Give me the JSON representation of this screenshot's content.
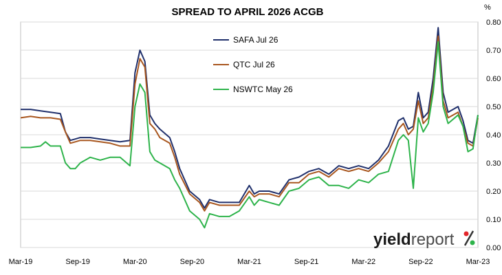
{
  "chart_data": {
    "type": "line",
    "title": "SPREAD TO APRIL 2026 ACGB",
    "y_unit": "%",
    "ylim": [
      0.0,
      0.8
    ],
    "yticks": [
      "0.00",
      "0.10",
      "0.20",
      "0.30",
      "0.40",
      "0.50",
      "0.60",
      "0.70",
      "0.80"
    ],
    "y_axis_side": "right",
    "x_tick_labels": [
      "Mar-19",
      "Sep-19",
      "Mar-20",
      "Sep-20",
      "Mar-21",
      "Sep-21",
      "Mar-22",
      "Sep-22",
      "Mar-23"
    ],
    "grid": true,
    "legend_position": "upper-center",
    "series": [
      {
        "name": "SAFA Jul 26",
        "color": "#1f2f6b",
        "points": [
          [
            0,
            0.49
          ],
          [
            1,
            0.49
          ],
          [
            2,
            0.485
          ],
          [
            3,
            0.48
          ],
          [
            4,
            0.475
          ],
          [
            4.5,
            0.41
          ],
          [
            5,
            0.38
          ],
          [
            5.5,
            0.385
          ],
          [
            6,
            0.39
          ],
          [
            7,
            0.39
          ],
          [
            8,
            0.385
          ],
          [
            9,
            0.38
          ],
          [
            10,
            0.375
          ],
          [
            11,
            0.38
          ],
          [
            11.5,
            0.62
          ],
          [
            12,
            0.7
          ],
          [
            12.5,
            0.66
          ],
          [
            13,
            0.47
          ],
          [
            13.5,
            0.44
          ],
          [
            14,
            0.42
          ],
          [
            15,
            0.39
          ],
          [
            15.5,
            0.34
          ],
          [
            16,
            0.28
          ],
          [
            17,
            0.2
          ],
          [
            18,
            0.17
          ],
          [
            18.5,
            0.14
          ],
          [
            19,
            0.17
          ],
          [
            20,
            0.16
          ],
          [
            21,
            0.16
          ],
          [
            22,
            0.16
          ],
          [
            23,
            0.22
          ],
          [
            23.5,
            0.19
          ],
          [
            24,
            0.2
          ],
          [
            25,
            0.2
          ],
          [
            26,
            0.19
          ],
          [
            27,
            0.24
          ],
          [
            28,
            0.25
          ],
          [
            29,
            0.27
          ],
          [
            30,
            0.28
          ],
          [
            31,
            0.26
          ],
          [
            32,
            0.29
          ],
          [
            33,
            0.28
          ],
          [
            34,
            0.29
          ],
          [
            35,
            0.28
          ],
          [
            36,
            0.31
          ],
          [
            37,
            0.36
          ],
          [
            38,
            0.45
          ],
          [
            38.5,
            0.46
          ],
          [
            39,
            0.42
          ],
          [
            39.5,
            0.43
          ],
          [
            40,
            0.55
          ],
          [
            40.5,
            0.46
          ],
          [
            41,
            0.48
          ],
          [
            41.5,
            0.6
          ],
          [
            42,
            0.78
          ],
          [
            42.5,
            0.55
          ],
          [
            43,
            0.48
          ],
          [
            44,
            0.5
          ],
          [
            44.5,
            0.45
          ],
          [
            45,
            0.38
          ],
          [
            45.5,
            0.37
          ],
          [
            46,
            0.47
          ]
        ]
      },
      {
        "name": "QTC Jul 26",
        "color": "#a8561e",
        "points": [
          [
            0,
            0.46
          ],
          [
            1,
            0.465
          ],
          [
            2,
            0.46
          ],
          [
            3,
            0.46
          ],
          [
            4,
            0.455
          ],
          [
            4.5,
            0.41
          ],
          [
            5,
            0.37
          ],
          [
            5.5,
            0.375
          ],
          [
            6,
            0.38
          ],
          [
            7,
            0.38
          ],
          [
            8,
            0.375
          ],
          [
            9,
            0.37
          ],
          [
            10,
            0.36
          ],
          [
            11,
            0.36
          ],
          [
            11.5,
            0.58
          ],
          [
            12,
            0.67
          ],
          [
            12.5,
            0.64
          ],
          [
            13,
            0.44
          ],
          [
            13.5,
            0.42
          ],
          [
            14,
            0.39
          ],
          [
            15,
            0.37
          ],
          [
            15.5,
            0.32
          ],
          [
            16,
            0.26
          ],
          [
            17,
            0.19
          ],
          [
            18,
            0.16
          ],
          [
            18.5,
            0.13
          ],
          [
            19,
            0.16
          ],
          [
            20,
            0.15
          ],
          [
            21,
            0.15
          ],
          [
            22,
            0.15
          ],
          [
            23,
            0.2
          ],
          [
            23.5,
            0.18
          ],
          [
            24,
            0.19
          ],
          [
            25,
            0.19
          ],
          [
            26,
            0.18
          ],
          [
            27,
            0.23
          ],
          [
            28,
            0.23
          ],
          [
            29,
            0.26
          ],
          [
            30,
            0.27
          ],
          [
            31,
            0.25
          ],
          [
            32,
            0.28
          ],
          [
            33,
            0.27
          ],
          [
            34,
            0.28
          ],
          [
            35,
            0.27
          ],
          [
            36,
            0.3
          ],
          [
            37,
            0.34
          ],
          [
            38,
            0.42
          ],
          [
            38.5,
            0.44
          ],
          [
            39,
            0.4
          ],
          [
            39.5,
            0.42
          ],
          [
            40,
            0.52
          ],
          [
            40.5,
            0.44
          ],
          [
            41,
            0.46
          ],
          [
            41.5,
            0.57
          ],
          [
            42,
            0.75
          ],
          [
            42.5,
            0.52
          ],
          [
            43,
            0.46
          ],
          [
            44,
            0.48
          ],
          [
            44.5,
            0.43
          ],
          [
            45,
            0.37
          ],
          [
            45.5,
            0.36
          ],
          [
            46,
            0.46
          ]
        ]
      },
      {
        "name": "NSWTC May 26",
        "color": "#2db34a",
        "points": [
          [
            0,
            0.355
          ],
          [
            1,
            0.355
          ],
          [
            2,
            0.36
          ],
          [
            2.5,
            0.375
          ],
          [
            3,
            0.36
          ],
          [
            4,
            0.36
          ],
          [
            4.5,
            0.3
          ],
          [
            5,
            0.28
          ],
          [
            5.5,
            0.28
          ],
          [
            6,
            0.3
          ],
          [
            7,
            0.32
          ],
          [
            8,
            0.31
          ],
          [
            9,
            0.32
          ],
          [
            10,
            0.32
          ],
          [
            11,
            0.29
          ],
          [
            11.5,
            0.5
          ],
          [
            12,
            0.58
          ],
          [
            12.5,
            0.55
          ],
          [
            13,
            0.34
          ],
          [
            13.5,
            0.31
          ],
          [
            14,
            0.3
          ],
          [
            15,
            0.28
          ],
          [
            15.5,
            0.24
          ],
          [
            16,
            0.21
          ],
          [
            17,
            0.13
          ],
          [
            18,
            0.1
          ],
          [
            18.5,
            0.07
          ],
          [
            19,
            0.12
          ],
          [
            20,
            0.11
          ],
          [
            21,
            0.11
          ],
          [
            22,
            0.13
          ],
          [
            23,
            0.18
          ],
          [
            23.5,
            0.15
          ],
          [
            24,
            0.17
          ],
          [
            25,
            0.16
          ],
          [
            26,
            0.15
          ],
          [
            27,
            0.2
          ],
          [
            28,
            0.21
          ],
          [
            29,
            0.24
          ],
          [
            30,
            0.25
          ],
          [
            31,
            0.22
          ],
          [
            32,
            0.22
          ],
          [
            33,
            0.21
          ],
          [
            34,
            0.24
          ],
          [
            35,
            0.23
          ],
          [
            36,
            0.26
          ],
          [
            37,
            0.27
          ],
          [
            38,
            0.38
          ],
          [
            38.5,
            0.4
          ],
          [
            39,
            0.38
          ],
          [
            39.5,
            0.21
          ],
          [
            40,
            0.46
          ],
          [
            40.5,
            0.41
          ],
          [
            41,
            0.44
          ],
          [
            41.5,
            0.55
          ],
          [
            42,
            0.73
          ],
          [
            42.5,
            0.5
          ],
          [
            43,
            0.44
          ],
          [
            44,
            0.47
          ],
          [
            44.5,
            0.43
          ],
          [
            45,
            0.34
          ],
          [
            45.5,
            0.35
          ],
          [
            46,
            0.47
          ]
        ]
      }
    ]
  },
  "brand": {
    "bold": "yield",
    "regular": "report",
    "symbol": "%",
    "colors": {
      "upper": "#e3262b",
      "lower": "#2db34a"
    }
  }
}
